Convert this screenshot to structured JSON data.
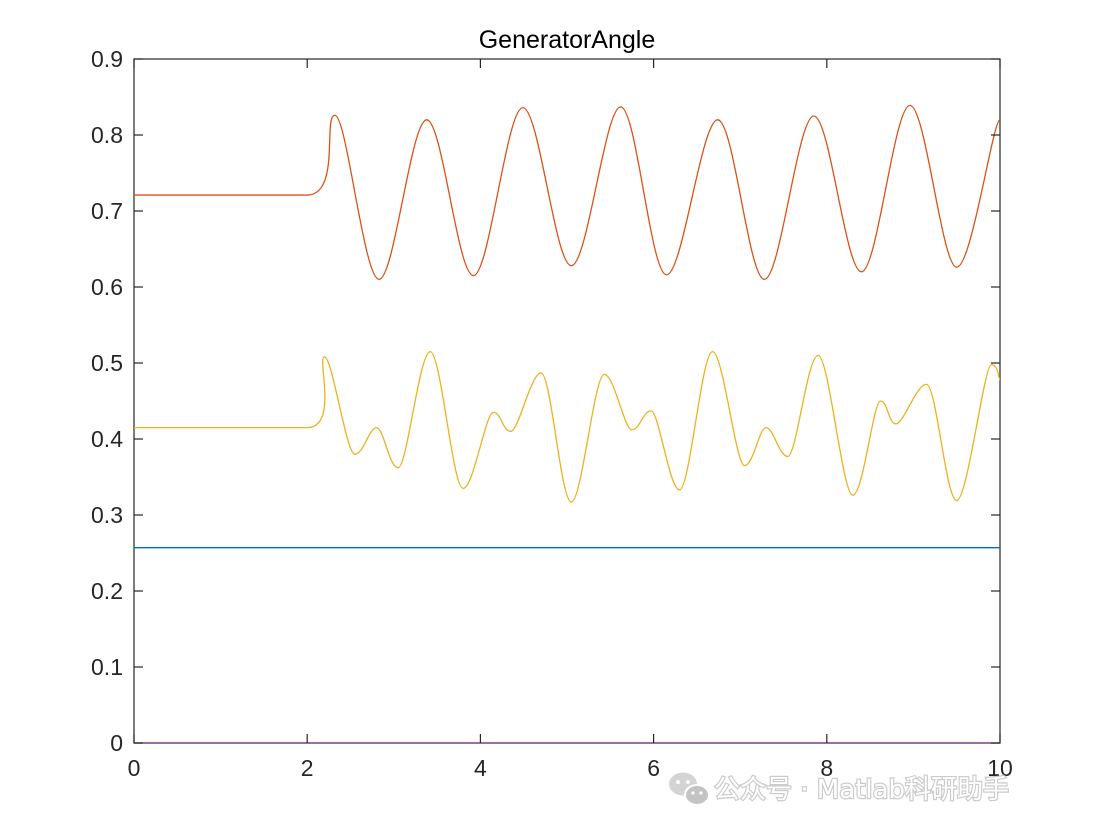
{
  "chart_data": {
    "type": "line",
    "title": "GeneratorAngle",
    "xlabel": "",
    "ylabel": "",
    "xlim": [
      0,
      10
    ],
    "ylim": [
      0,
      0.9
    ],
    "xticks": [
      0,
      2,
      4,
      6,
      8,
      10
    ],
    "xtick_labels": [
      "0",
      "2",
      "4",
      "6",
      "8",
      "10"
    ],
    "yticks": [
      0,
      0.1,
      0.2,
      0.3,
      0.4,
      0.5,
      0.6,
      0.7,
      0.8,
      0.9
    ],
    "ytick_labels": [
      "0",
      "0.1",
      "0.2",
      "0.3",
      "0.4",
      "0.5",
      "0.6",
      "0.7",
      "0.8",
      "0.9"
    ],
    "grid": false,
    "legend": "none",
    "series": [
      {
        "color": "#7e2f8e",
        "x": [
          0,
          10
        ],
        "y": [
          0,
          0
        ]
      },
      {
        "color": "#0072bd",
        "x": [
          0,
          10
        ],
        "y": [
          0.257,
          0.257
        ]
      },
      {
        "color": "#d95319",
        "x": [
          0,
          2.0,
          2.32,
          2.83,
          3.38,
          3.92,
          4.49,
          5.05,
          5.62,
          6.15,
          6.74,
          7.28,
          7.85,
          8.4,
          8.96,
          9.5,
          10.0
        ],
        "y": [
          0.721,
          0.721,
          0.826,
          0.61,
          0.82,
          0.615,
          0.836,
          0.628,
          0.837,
          0.616,
          0.82,
          0.61,
          0.825,
          0.62,
          0.839,
          0.626,
          0.82
        ]
      },
      {
        "color": "#edb120",
        "x": [
          0,
          2.0,
          2.2,
          2.55,
          2.8,
          3.05,
          3.42,
          3.8,
          4.15,
          4.35,
          4.7,
          5.05,
          5.43,
          5.75,
          5.97,
          6.3,
          6.68,
          7.05,
          7.3,
          7.55,
          7.9,
          8.3,
          8.62,
          8.8,
          9.15,
          9.5,
          9.9,
          10.0
        ],
        "y": [
          0.415,
          0.415,
          0.508,
          0.38,
          0.415,
          0.362,
          0.515,
          0.335,
          0.435,
          0.41,
          0.487,
          0.317,
          0.485,
          0.412,
          0.437,
          0.333,
          0.515,
          0.365,
          0.415,
          0.377,
          0.51,
          0.326,
          0.45,
          0.42,
          0.472,
          0.319,
          0.498,
          0.478
        ]
      }
    ]
  },
  "watermark": {
    "icon": "wechat-icon",
    "text": "公众号 · Matlab科研助手",
    "color": "#ffffff"
  }
}
